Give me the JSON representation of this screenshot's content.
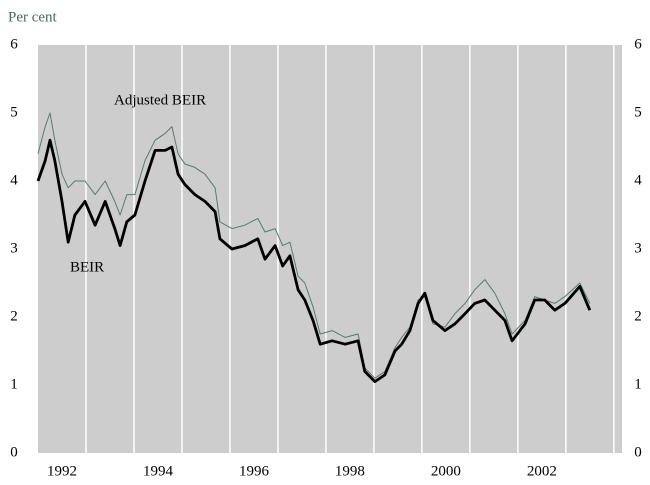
{
  "chart_data": {
    "type": "line",
    "y_label": "Per cent",
    "x": [
      1992.0,
      1992.15,
      1992.25,
      1992.35,
      1992.5,
      1992.63,
      1992.77,
      1992.98,
      1993.19,
      1993.4,
      1993.6,
      1993.71,
      1993.85,
      1994.02,
      1994.23,
      1994.44,
      1994.65,
      1994.79,
      1994.92,
      1995.06,
      1995.27,
      1995.48,
      1995.69,
      1995.79,
      1996.04,
      1996.31,
      1996.58,
      1996.73,
      1996.94,
      1997.1,
      1997.25,
      1997.42,
      1997.56,
      1997.73,
      1997.88,
      1998.13,
      1998.4,
      1998.67,
      1998.81,
      1999.02,
      1999.23,
      1999.44,
      1999.58,
      1999.75,
      1999.92,
      2000.06,
      2000.23,
      2000.48,
      2000.69,
      2000.9,
      2001.1,
      2001.31,
      2001.52,
      2001.73,
      2001.88,
      2002.15,
      2002.35,
      2002.56,
      2002.77,
      2002.98,
      2003.29,
      2003.5
    ],
    "series": [
      {
        "name": "Adjusted BEIR",
        "color": "#5a7a6a",
        "values": [
          4.4,
          4.8,
          5.0,
          4.6,
          4.1,
          3.9,
          4.0,
          4.0,
          3.8,
          4.0,
          3.7,
          3.5,
          3.8,
          3.8,
          4.3,
          4.6,
          4.7,
          4.8,
          4.4,
          4.25,
          4.2,
          4.1,
          3.9,
          3.4,
          3.3,
          3.35,
          3.45,
          3.25,
          3.3,
          3.05,
          3.1,
          2.6,
          2.5,
          2.15,
          1.75,
          1.8,
          1.7,
          1.75,
          1.25,
          1.1,
          1.2,
          1.55,
          1.7,
          1.85,
          2.25,
          2.3,
          1.9,
          1.85,
          2.05,
          2.2,
          2.4,
          2.55,
          2.35,
          2.05,
          1.75,
          1.95,
          2.3,
          2.25,
          2.2,
          2.3,
          2.5,
          2.2
        ]
      },
      {
        "name": "BEIR",
        "color": "#000000",
        "values": [
          4.0,
          4.3,
          4.6,
          4.3,
          3.7,
          3.1,
          3.5,
          3.7,
          3.35,
          3.7,
          3.3,
          3.05,
          3.4,
          3.5,
          4.0,
          4.45,
          4.45,
          4.5,
          4.1,
          3.95,
          3.8,
          3.7,
          3.55,
          3.15,
          3.0,
          3.05,
          3.15,
          2.85,
          3.05,
          2.75,
          2.9,
          2.4,
          2.25,
          1.95,
          1.6,
          1.65,
          1.6,
          1.65,
          1.2,
          1.05,
          1.15,
          1.5,
          1.6,
          1.8,
          2.2,
          2.35,
          1.95,
          1.8,
          1.9,
          2.05,
          2.2,
          2.25,
          2.1,
          1.95,
          1.65,
          1.9,
          2.25,
          2.25,
          2.1,
          2.2,
          2.45,
          2.1
        ]
      }
    ],
    "xlim": [
      1992.0,
      2004.17
    ],
    "xticks": [
      {
        "value": 1992.5,
        "label": "1992"
      },
      {
        "value": 1994.5,
        "label": "1994"
      },
      {
        "value": 1996.5,
        "label": "1996"
      },
      {
        "value": 1998.5,
        "label": "1998"
      },
      {
        "value": 2000.5,
        "label": "2000"
      },
      {
        "value": 2002.5,
        "label": "2002"
      }
    ],
    "xgrid": [
      1993,
      1994,
      1995,
      1996,
      1997,
      1998,
      1999,
      2000,
      2001,
      2002,
      2003,
      2004
    ],
    "ylim": [
      0,
      6
    ],
    "yticks": [
      0,
      1,
      2,
      3,
      4,
      5,
      6
    ],
    "y2lim": [
      0,
      6
    ],
    "y2ticks": [
      0,
      1,
      2,
      3,
      4,
      5,
      6
    ],
    "background": "#cdcdcd"
  }
}
